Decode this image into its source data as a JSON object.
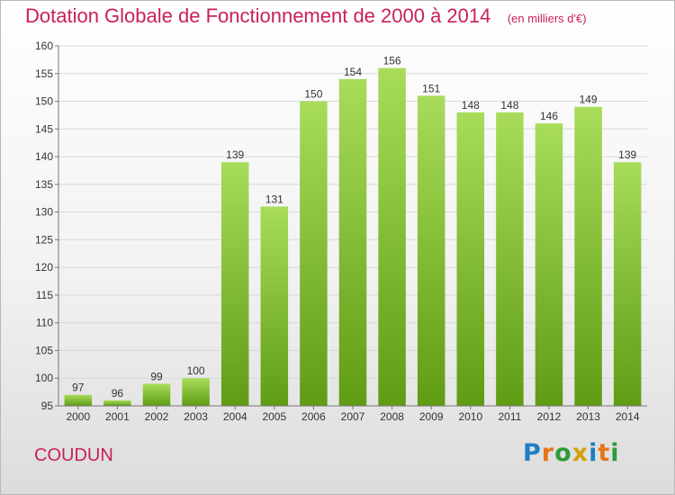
{
  "header": {
    "title": "Dotation Globale de Fonctionnement de 2000 à 2014",
    "subtitle": "(en milliers d'€)"
  },
  "commune": "COUDUN",
  "logo": {
    "text": "Proxiti",
    "letter_colors": [
      "#1e7fc4",
      "#e8741a",
      "#2e9a3a",
      "#d4a10e",
      "#1e7fc4",
      "#e8741a",
      "#2e9a3a"
    ]
  },
  "chart_data": {
    "type": "bar",
    "title": "Dotation Globale de Fonctionnement de 2000 à 2014",
    "subtitle": "(en milliers d'€)",
    "xlabel": "",
    "ylabel": "",
    "categories": [
      "2000",
      "2001",
      "2002",
      "2003",
      "2004",
      "2005",
      "2006",
      "2007",
      "2008",
      "2009",
      "2010",
      "2011",
      "2012",
      "2013",
      "2014"
    ],
    "values": [
      97,
      96,
      99,
      100,
      139,
      131,
      150,
      154,
      156,
      151,
      148,
      148,
      146,
      149,
      139
    ],
    "ylim": [
      95,
      160
    ],
    "yticks": [
      95,
      100,
      105,
      110,
      115,
      120,
      125,
      130,
      135,
      140,
      145,
      150,
      155,
      160
    ],
    "grid": true,
    "bar_color": "#7dc22a",
    "bar_color_light": "#a8dc5a",
    "bar_color_dark": "#5f9c14"
  }
}
